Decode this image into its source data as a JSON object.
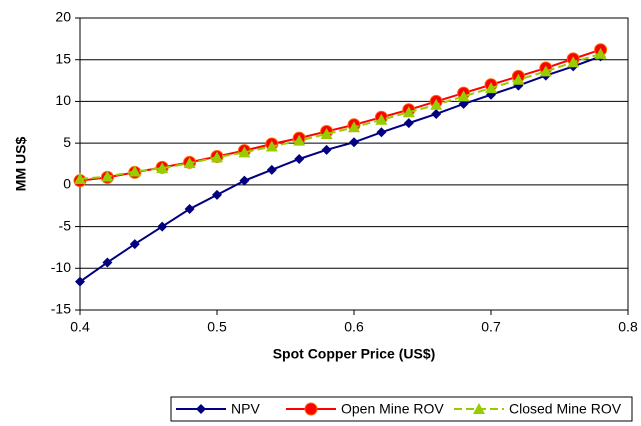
{
  "chart_data": {
    "type": "line",
    "xlabel": "Spot Copper Price (US$)",
    "ylabel": "MM US$",
    "x": [
      0.4,
      0.42,
      0.44,
      0.46,
      0.48,
      0.5,
      0.52,
      0.54,
      0.56,
      0.58,
      0.6,
      0.62,
      0.64,
      0.66,
      0.68,
      0.7,
      0.72,
      0.74,
      0.76,
      0.78
    ],
    "series": [
      {
        "name": "NPV",
        "color": "#000080",
        "marker": "diamond",
        "dashed": false,
        "values": [
          -11.6,
          -9.3,
          -7.1,
          -5.0,
          -2.9,
          -1.2,
          0.5,
          1.8,
          3.1,
          4.2,
          5.1,
          6.3,
          7.4,
          8.5,
          9.7,
          10.8,
          11.9,
          13.1,
          14.2,
          15.4
        ]
      },
      {
        "name": "Open Mine ROV",
        "color": "#ff0000",
        "marker": "circle",
        "dashed": false,
        "values": [
          0.5,
          0.9,
          1.5,
          2.1,
          2.7,
          3.4,
          4.1,
          4.9,
          5.6,
          6.4,
          7.2,
          8.1,
          9.0,
          10.0,
          11.0,
          12.0,
          13.0,
          14.0,
          15.1,
          16.2
        ]
      },
      {
        "name": "Closed Mine ROV",
        "color": "#99cc00",
        "marker": "triangle",
        "dashed": true,
        "values": [
          0.7,
          1.0,
          1.6,
          2.0,
          2.6,
          3.3,
          3.9,
          4.6,
          5.3,
          6.1,
          6.9,
          7.8,
          8.7,
          9.6,
          10.6,
          11.6,
          12.6,
          13.6,
          14.7,
          15.7
        ]
      }
    ],
    "xlim": [
      0.4,
      0.8
    ],
    "xticks": [
      0.4,
      0.5,
      0.6,
      0.7,
      0.8
    ],
    "ylim": [
      -15,
      20
    ],
    "yticks": [
      -15,
      -10,
      -5,
      0,
      5,
      10,
      15,
      20
    ],
    "grid": true,
    "legend": "bottom"
  }
}
